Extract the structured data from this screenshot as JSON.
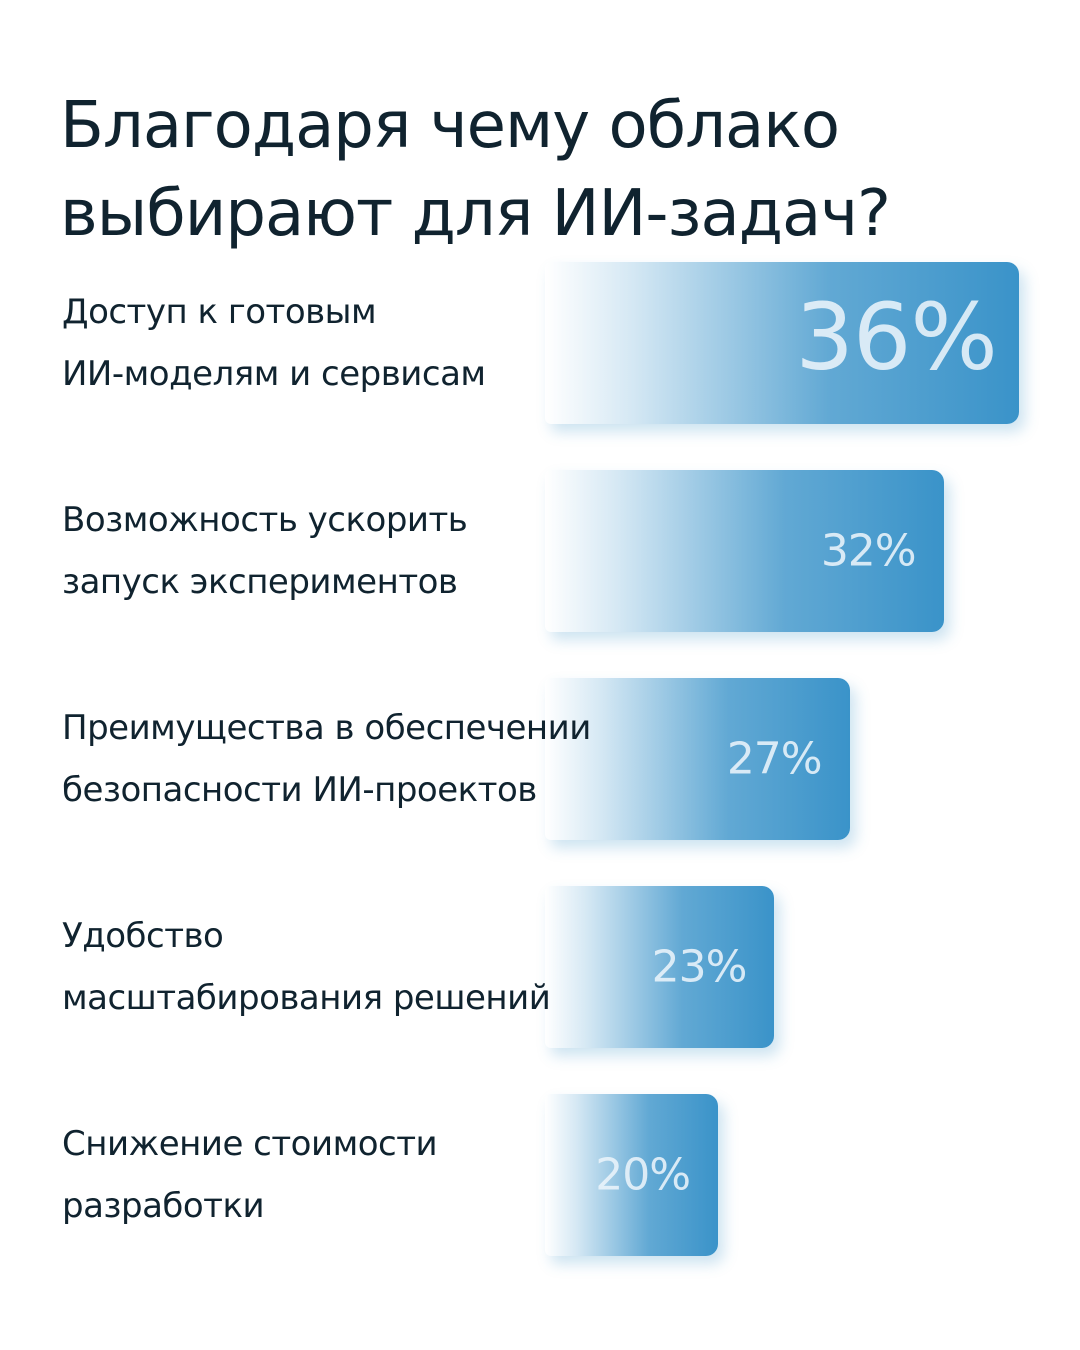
{
  "chart_data": {
    "type": "bar",
    "orientation": "horizontal",
    "title": "Благодаря чему облако\nвыбирают для ИИ-задач?",
    "categories": [
      "Доступ к готовым\nИИ-моделям и сервисам",
      "Возможность ускорить\nзапуск экспериментов",
      "Преимущества в обеспечении\nбезопасности ИИ-проектов",
      "Удобство\nмасштабирования решений",
      "Снижение стоимости\nразработки"
    ],
    "values": [
      36,
      32,
      27,
      23,
      20
    ],
    "value_labels": [
      "36%",
      "32%",
      "27%",
      "23%",
      "20%"
    ],
    "color": "#3a93c9"
  }
}
